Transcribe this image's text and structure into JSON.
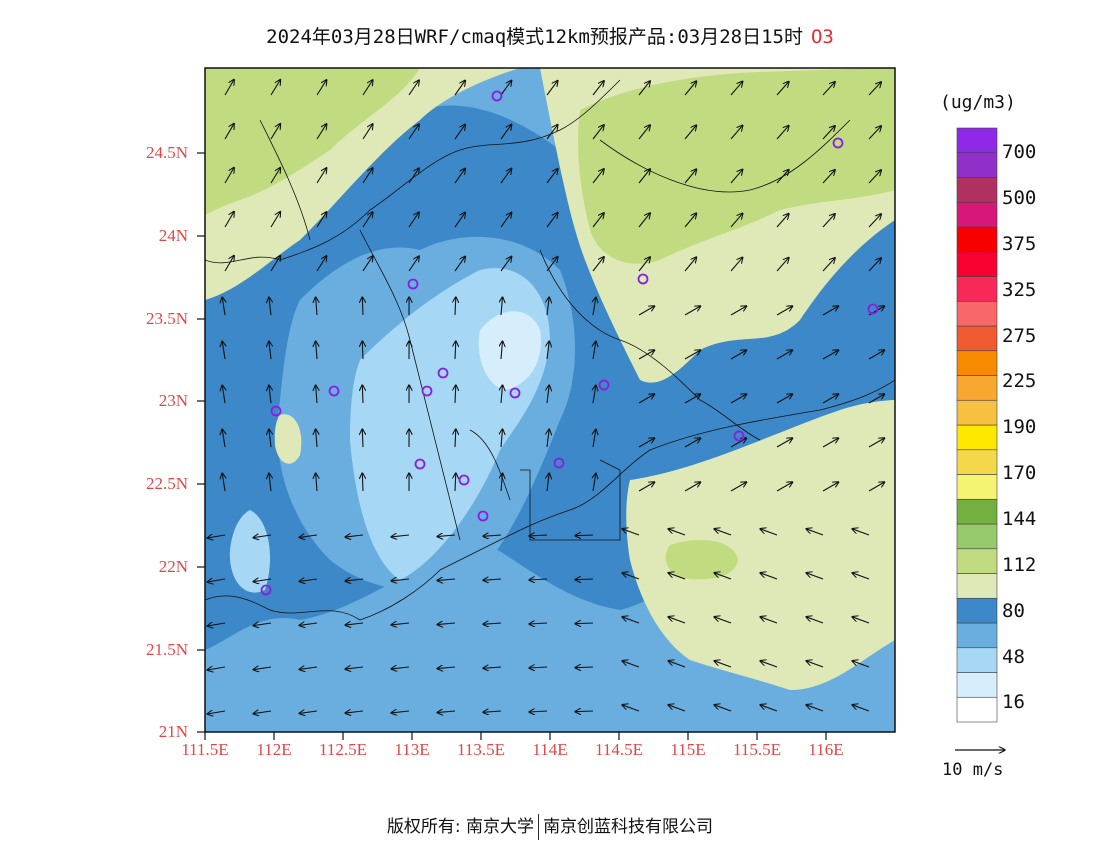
{
  "title": {
    "text": "2024年03月28日WRF/cmaq模式12km预报产品:03月28日15时",
    "species": "O3"
  },
  "axes": {
    "lat_ticks": [
      "24.5N",
      "24N",
      "23.5N",
      "23N",
      "22.5N",
      "22N",
      "21.5N",
      "21N"
    ],
    "lon_ticks": [
      "111.5E",
      "112E",
      "112.5E",
      "113E",
      "113.5E",
      "114E",
      "114.5E",
      "115E",
      "115.5E",
      "116E"
    ]
  },
  "colorbar": {
    "unit": "(ug/m3)",
    "labels": [
      "700",
      "500",
      "375",
      "325",
      "275",
      "225",
      "190",
      "170",
      "144",
      "112",
      "80",
      "48",
      "16"
    ],
    "colors": [
      "#ffffff",
      "#d6eefb",
      "#a6d8f5",
      "#6aaee0",
      "#3d88c8",
      "#dfe9b8",
      "#c1db80",
      "#96c96a",
      "#73b040",
      "#f4f472",
      "#f4d84a",
      "#ffe800",
      "#f8c040",
      "#f8a830",
      "#f88a00",
      "#f05a30",
      "#f86868",
      "#f82858",
      "#f80030",
      "#f80000",
      "#d81878",
      "#b03060",
      "#9030c8",
      "#9028e8"
    ]
  },
  "wind_reference": "10 m/s",
  "sites": [
    "o",
    "o",
    "o",
    "o",
    "o",
    "o",
    "o",
    "o",
    "o",
    "o",
    "o",
    "o",
    "o",
    "o",
    "o",
    "o"
  ],
  "footer": {
    "left": "版权所有: 南京大学",
    "right": "南京创蓝科技有限公司"
  }
}
